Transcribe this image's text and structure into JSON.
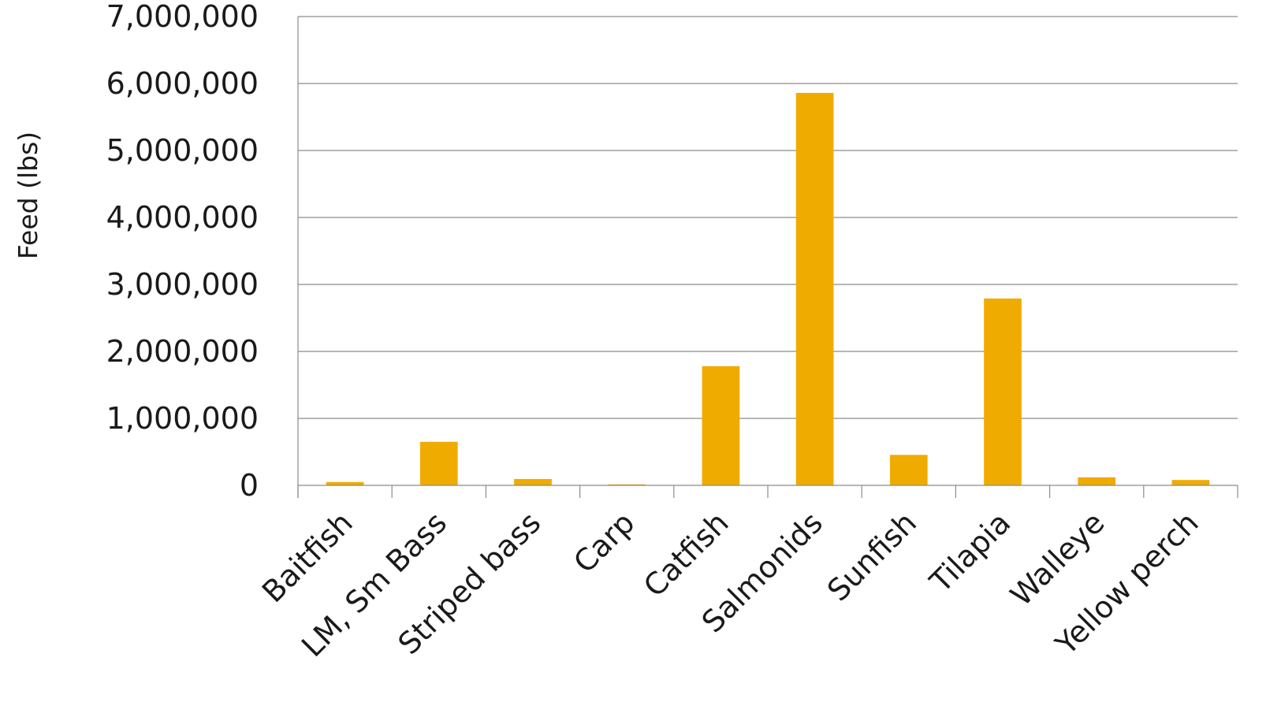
{
  "chart_data": {
    "type": "bar",
    "title": "",
    "xlabel": "",
    "ylabel": "Feed (lbs)",
    "categories": [
      "Baitfish",
      "LM, Sm Bass",
      "Striped bass",
      "Carp",
      "Catfish",
      "Salmonids",
      "Sunfish",
      "Tilapia",
      "Walleye",
      "Yellow perch"
    ],
    "values": [
      50000,
      650000,
      95000,
      15000,
      1780000,
      5860000,
      455000,
      2790000,
      120000,
      80000
    ],
    "ylim": [
      0,
      7000000
    ],
    "yticks": [
      0,
      1000000,
      2000000,
      3000000,
      4000000,
      5000000,
      6000000,
      7000000
    ],
    "ytick_labels": [
      "0",
      "1,000,000",
      "2,000,000",
      "3,000,000",
      "4,000,000",
      "5,000,000",
      "6,000,000",
      "7,000,000"
    ],
    "grid": true,
    "legend": "none",
    "bar_color": "#F0AB00",
    "gridline_color": "#8C8C8C"
  }
}
